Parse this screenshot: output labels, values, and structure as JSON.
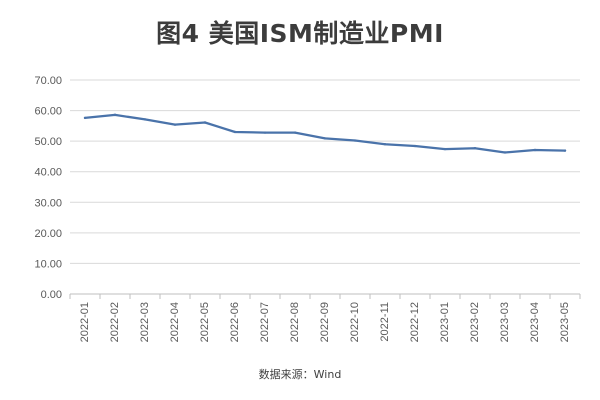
{
  "chart_data": {
    "type": "line",
    "title": "图4 美国ISM制造业PMI",
    "source": "数据来源：Wind",
    "xlabel": "",
    "ylabel": "",
    "ylim": [
      0,
      70
    ],
    "y_ticks": [
      "0.00",
      "10.00",
      "20.00",
      "30.00",
      "40.00",
      "50.00",
      "60.00",
      "70.00"
    ],
    "grid": true,
    "legend": "none",
    "line_color": "#4a73aa",
    "categories": [
      "2022-01",
      "2022-02",
      "2022-03",
      "2022-04",
      "2022-05",
      "2022-06",
      "2022-07",
      "2022-08",
      "2022-09",
      "2022-10",
      "2022-11",
      "2022-12",
      "2023-01",
      "2023-02",
      "2023-03",
      "2023-04",
      "2023-05"
    ],
    "series": [
      {
        "values": [
          57.6,
          58.6,
          57.1,
          55.4,
          56.1,
          53.0,
          52.8,
          52.8,
          50.9,
          50.2,
          49.0,
          48.4,
          47.4,
          47.7,
          46.3,
          47.1,
          46.9
        ]
      }
    ]
  }
}
